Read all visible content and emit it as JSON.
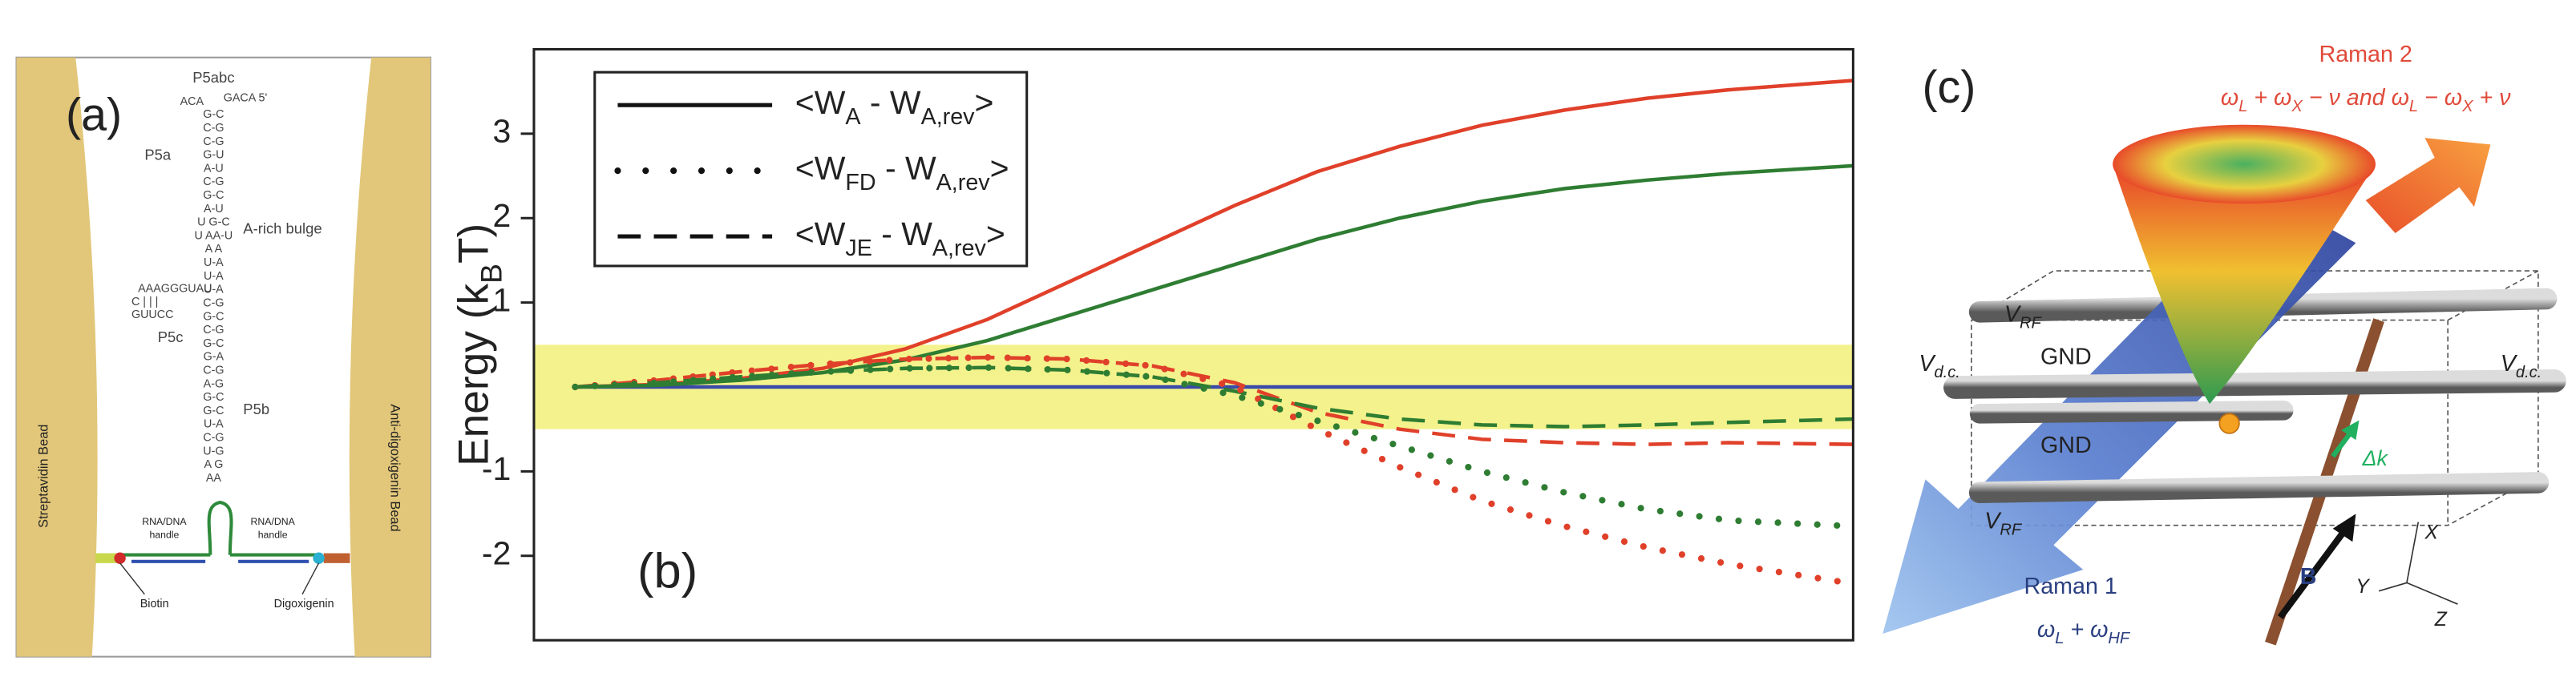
{
  "panel_a": {
    "label": "(a)",
    "p5abc": "P5abc",
    "p5a": "P5a",
    "bulge": "A-rich bulge",
    "p5c": "P5c",
    "p5b": "P5b",
    "top_left": "ACA",
    "top_right": "GACA 5'",
    "loop_c1": "AAAGGGUAU",
    "loop_c2": "C  | | |",
    "loop_c3": "GUUCC",
    "sequence": [
      "G-C",
      "C-G",
      "C-G",
      "G-U",
      "A-U",
      "C-G",
      "G-C",
      "A-U",
      "U  G-C",
      "U  AA-U",
      "A   A",
      "U-A",
      "U-A",
      "U-A",
      "C-G",
      "G-C",
      "C-G",
      "G-C",
      "G-A",
      "C-G",
      "A-G",
      "G-C",
      "G-C",
      "U-A",
      "C-G",
      "U-G",
      "A  G",
      "AA"
    ],
    "left_bead": "Streptavidin Bead",
    "right_bead": "Anti-digoxigenin Bead",
    "handle_left": [
      "RNA/DNA",
      "handle"
    ],
    "handle_right": [
      "RNA/DNA",
      "handle"
    ],
    "biotin": "Biotin",
    "digoxigenin": "Digoxigenin"
  },
  "chart_data": {
    "type": "line",
    "label": "(b)",
    "y_label": [
      "Energy (k",
      "B",
      "T)"
    ],
    "xlim": [
      0,
      32
    ],
    "ylim": [
      -3,
      4
    ],
    "yticks": [
      -2,
      -1,
      1,
      2,
      3
    ],
    "band": {
      "range": [
        -0.5,
        0.5
      ],
      "color": "#f4f28c"
    },
    "legend": [
      {
        "style": "solid",
        "parts": [
          "<W",
          "A",
          " - W",
          "A,rev",
          ">"
        ]
      },
      {
        "style": "dotted",
        "parts": [
          "<W",
          "FD",
          " - W",
          "A,rev",
          ">"
        ]
      },
      {
        "style": "dashed",
        "parts": [
          "<W",
          "JE",
          " - W",
          "A,rev",
          ">"
        ]
      }
    ],
    "x": [
      1,
      3,
      5,
      7,
      9,
      11,
      13,
      15,
      17,
      19,
      21,
      23,
      25,
      27,
      29,
      32
    ],
    "series": [
      {
        "color": "#3a4aa8",
        "style": "solid",
        "values": [
          0,
          0,
          0,
          0,
          0,
          0,
          0,
          0,
          0,
          0,
          0,
          0,
          0,
          0,
          0,
          0
        ]
      },
      {
        "color": "#e0402a",
        "style": "solid",
        "values": [
          0,
          0.03,
          0.1,
          0.22,
          0.45,
          0.8,
          1.25,
          1.7,
          2.15,
          2.55,
          2.85,
          3.1,
          3.28,
          3.42,
          3.52,
          3.63
        ]
      },
      {
        "color": "#2e7d32",
        "style": "solid",
        "values": [
          0,
          0.02,
          0.08,
          0.17,
          0.32,
          0.55,
          0.85,
          1.15,
          1.45,
          1.75,
          2.0,
          2.2,
          2.35,
          2.45,
          2.53,
          2.62
        ]
      },
      {
        "color": "#e0402a",
        "style": "dashed",
        "values": [
          0,
          0.08,
          0.18,
          0.27,
          0.33,
          0.35,
          0.33,
          0.25,
          0.05,
          -0.3,
          -0.5,
          -0.62,
          -0.66,
          -0.68,
          -0.66,
          -0.68
        ]
      },
      {
        "color": "#2e7d32",
        "style": "dashed",
        "values": [
          0,
          0.05,
          0.12,
          0.18,
          0.22,
          0.23,
          0.2,
          0.12,
          -0.05,
          -0.25,
          -0.38,
          -0.45,
          -0.47,
          -0.45,
          -0.42,
          -0.38
        ]
      },
      {
        "color": "#e0402a",
        "style": "dotted",
        "values": [
          0,
          0.08,
          0.18,
          0.27,
          0.33,
          0.35,
          0.33,
          0.25,
          0.0,
          -0.5,
          -0.95,
          -1.35,
          -1.65,
          -1.9,
          -2.1,
          -2.33
        ]
      },
      {
        "color": "#2e7d32",
        "style": "dotted",
        "values": [
          0,
          0.05,
          0.12,
          0.18,
          0.22,
          0.23,
          0.2,
          0.12,
          -0.1,
          -0.4,
          -0.7,
          -1.0,
          -1.25,
          -1.45,
          -1.58,
          -1.65
        ]
      }
    ]
  },
  "panel_c": {
    "label": "(c)",
    "raman2": "Raman 2",
    "raman2_freq": [
      "ω",
      "L",
      " + ω",
      "X",
      " − ν and ω",
      "L",
      " − ω",
      "X",
      " + ν"
    ],
    "v_rf_top": [
      "V",
      "RF"
    ],
    "gnd_top": "GND",
    "vdc_left": [
      "V",
      "d.c."
    ],
    "vdc_right": [
      "V",
      "d.c."
    ],
    "gnd_bottom": "GND",
    "v_rf_bottom": [
      "V",
      "RF"
    ],
    "delta_k": "Δk",
    "raman1": "Raman 1",
    "raman1_freq": [
      "ω",
      "L",
      " + ω",
      "HF"
    ],
    "b_field": "B",
    "axis_x": "X",
    "axis_y": "Y",
    "axis_z": "Z"
  }
}
